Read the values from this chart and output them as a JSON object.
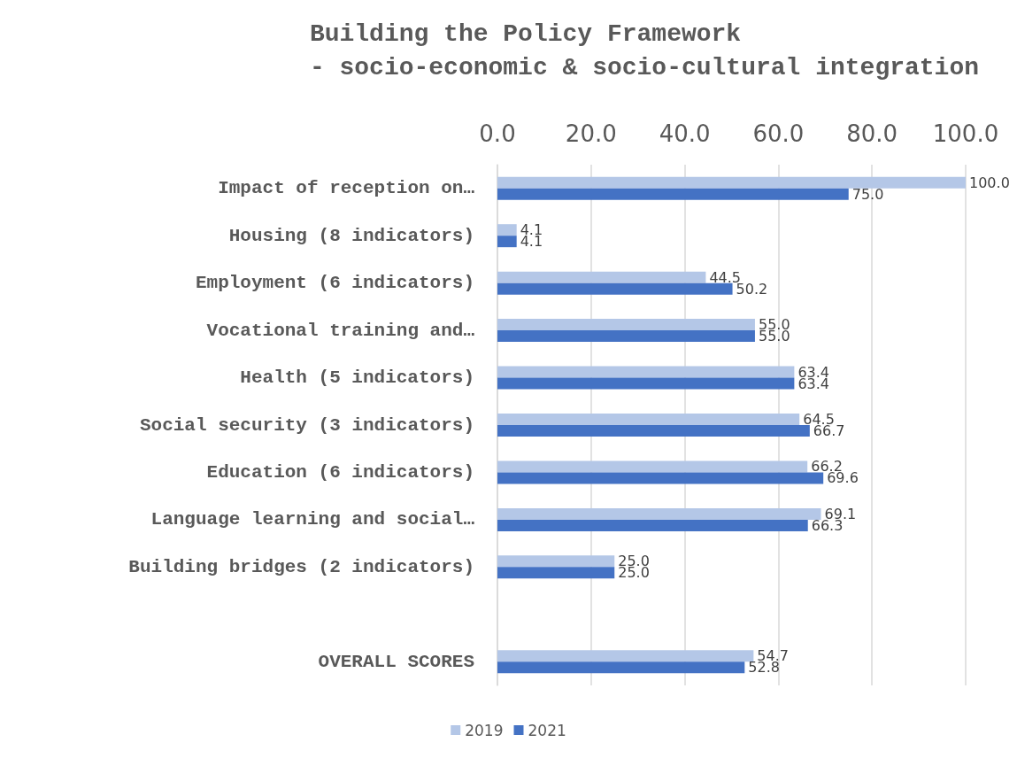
{
  "chart_data": {
    "type": "bar",
    "orientation": "horizontal",
    "title": "Building the Policy Framework",
    "subtitle": "- socio-economic & socio-cultural integration",
    "categories": [
      "Impact of reception on…",
      "Housing (8 indicators)",
      "Employment (6 indicators)",
      "Vocational training and…",
      "Health (5 indicators)",
      "Social security (3 indicators)",
      "Education (6 indicators)",
      "Language learning and social…",
      "Building bridges (2 indicators)",
      null,
      "OVERALL SCORES"
    ],
    "series": [
      {
        "name": "2019",
        "color": "#b4c7e7",
        "values": [
          100.0,
          4.1,
          44.5,
          55.0,
          63.4,
          64.5,
          66.2,
          69.1,
          25.0,
          null,
          54.7
        ],
        "value_labels": [
          "100.0",
          "4.1",
          "44.5",
          "55.0",
          "63.4",
          "64.5",
          "66.2",
          "69.1",
          "25.0",
          null,
          "54.7"
        ]
      },
      {
        "name": "2021",
        "color": "#4472c4",
        "values": [
          75.0,
          4.1,
          50.2,
          55.0,
          63.4,
          66.7,
          69.6,
          66.3,
          25.0,
          null,
          52.8
        ],
        "value_labels": [
          "75.0",
          "4.1",
          "50.2",
          "55.0",
          "63.4",
          "66.7",
          "69.6",
          "66.3",
          "25.0",
          null,
          "52.8"
        ]
      }
    ],
    "xlim": [
      0,
      100
    ],
    "xticks": [
      {
        "value": 0,
        "label": "0.0"
      },
      {
        "value": 20,
        "label": "20.0"
      },
      {
        "value": 40,
        "label": "40.0"
      },
      {
        "value": 60,
        "label": "60.0"
      },
      {
        "value": 80,
        "label": "80.0"
      },
      {
        "value": 100,
        "label": "100.0"
      }
    ],
    "grid": "x",
    "legend": "bottom"
  }
}
